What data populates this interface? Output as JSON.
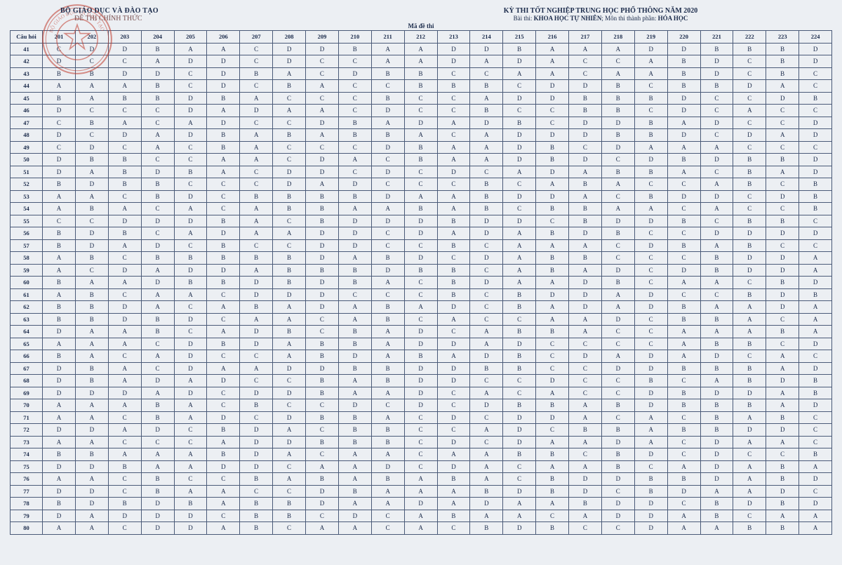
{
  "header": {
    "ministry": "BỘ GIÁO DỤC VÀ ĐÀO TẠO",
    "official": "ĐỀ THI CHÍNH THỨC",
    "exam_title": "KỲ THI TỐT NGHIỆP TRUNG HỌC PHỔ THÔNG NĂM 2020",
    "exam_sub_prefix": "Bài thi:",
    "exam_sub_bold1": "KHOA HỌC TỰ NHIÊN",
    "exam_sub_mid": "; Môn thi thành phần:",
    "exam_sub_bold2": "HÓA HỌC",
    "ma_de_thi": "Mã đề thi",
    "cau_hoi": "Câu hỏi"
  },
  "codes": [
    "201",
    "202",
    "203",
    "204",
    "205",
    "206",
    "207",
    "208",
    "209",
    "210",
    "211",
    "212",
    "213",
    "214",
    "215",
    "216",
    "217",
    "218",
    "219",
    "220",
    "221",
    "222",
    "223",
    "224"
  ],
  "question_start": 41,
  "question_end": 80,
  "answers": {
    "41": [
      "C",
      "D",
      "D",
      "B",
      "A",
      "A",
      "C",
      "D",
      "D",
      "B",
      "A",
      "A",
      "D",
      "D",
      "B",
      "A",
      "A",
      "A",
      "D",
      "D",
      "B",
      "B",
      "B",
      "D"
    ],
    "42": [
      "D",
      "C",
      "C",
      "A",
      "D",
      "D",
      "C",
      "D",
      "C",
      "C",
      "A",
      "A",
      "D",
      "A",
      "D",
      "A",
      "C",
      "C",
      "A",
      "B",
      "D",
      "C",
      "B",
      "D"
    ],
    "43": [
      "B",
      "B",
      "D",
      "D",
      "C",
      "D",
      "B",
      "A",
      "C",
      "D",
      "B",
      "B",
      "C",
      "C",
      "A",
      "A",
      "C",
      "A",
      "A",
      "B",
      "D",
      "C",
      "B",
      "C"
    ],
    "44": [
      "A",
      "A",
      "A",
      "B",
      "C",
      "D",
      "C",
      "B",
      "A",
      "C",
      "C",
      "B",
      "B",
      "B",
      "C",
      "D",
      "D",
      "B",
      "C",
      "B",
      "B",
      "D",
      "A",
      "C"
    ],
    "45": [
      "B",
      "A",
      "B",
      "B",
      "D",
      "B",
      "A",
      "C",
      "C",
      "C",
      "B",
      "C",
      "C",
      "A",
      "D",
      "D",
      "B",
      "B",
      "B",
      "D",
      "C",
      "C",
      "D",
      "B"
    ],
    "46": [
      "D",
      "C",
      "C",
      "C",
      "D",
      "A",
      "D",
      "A",
      "A",
      "C",
      "D",
      "C",
      "C",
      "B",
      "C",
      "C",
      "B",
      "B",
      "C",
      "D",
      "C",
      "A",
      "C",
      "C"
    ],
    "47": [
      "C",
      "B",
      "A",
      "C",
      "A",
      "D",
      "C",
      "C",
      "D",
      "B",
      "A",
      "D",
      "A",
      "D",
      "B",
      "C",
      "D",
      "D",
      "B",
      "A",
      "D",
      "C",
      "C",
      "D"
    ],
    "48": [
      "D",
      "C",
      "D",
      "A",
      "D",
      "B",
      "A",
      "B",
      "A",
      "B",
      "B",
      "A",
      "C",
      "A",
      "D",
      "D",
      "D",
      "B",
      "B",
      "D",
      "C",
      "D",
      "A",
      "D"
    ],
    "49": [
      "C",
      "D",
      "C",
      "A",
      "C",
      "B",
      "A",
      "C",
      "C",
      "C",
      "D",
      "B",
      "A",
      "A",
      "D",
      "B",
      "C",
      "D",
      "A",
      "A",
      "A",
      "C",
      "C",
      "C"
    ],
    "50": [
      "D",
      "B",
      "B",
      "C",
      "C",
      "A",
      "A",
      "C",
      "D",
      "A",
      "C",
      "B",
      "A",
      "A",
      "D",
      "B",
      "D",
      "C",
      "D",
      "B",
      "D",
      "B",
      "B",
      "D"
    ],
    "51": [
      "D",
      "A",
      "B",
      "D",
      "B",
      "A",
      "C",
      "D",
      "D",
      "C",
      "D",
      "C",
      "D",
      "C",
      "A",
      "D",
      "A",
      "B",
      "B",
      "A",
      "C",
      "B",
      "A",
      "D"
    ],
    "52": [
      "B",
      "D",
      "B",
      "B",
      "C",
      "C",
      "C",
      "D",
      "A",
      "D",
      "C",
      "C",
      "C",
      "B",
      "C",
      "A",
      "B",
      "A",
      "C",
      "C",
      "A",
      "B",
      "C",
      "B"
    ],
    "53": [
      "A",
      "A",
      "C",
      "B",
      "D",
      "C",
      "B",
      "B",
      "B",
      "B",
      "D",
      "A",
      "A",
      "B",
      "D",
      "D",
      "A",
      "C",
      "B",
      "D",
      "D",
      "C",
      "D",
      "B"
    ],
    "54": [
      "A",
      "B",
      "A",
      "C",
      "A",
      "C",
      "A",
      "B",
      "B",
      "A",
      "A",
      "B",
      "A",
      "B",
      "C",
      "B",
      "B",
      "A",
      "A",
      "C",
      "A",
      "C",
      "C",
      "B"
    ],
    "55": [
      "C",
      "C",
      "D",
      "D",
      "D",
      "B",
      "A",
      "C",
      "B",
      "D",
      "D",
      "D",
      "B",
      "D",
      "D",
      "C",
      "B",
      "D",
      "D",
      "B",
      "C",
      "B",
      "B",
      "C"
    ],
    "56": [
      "B",
      "D",
      "B",
      "C",
      "A",
      "D",
      "A",
      "A",
      "D",
      "D",
      "C",
      "D",
      "A",
      "D",
      "A",
      "B",
      "D",
      "B",
      "C",
      "C",
      "D",
      "D",
      "D",
      "D"
    ],
    "57": [
      "B",
      "D",
      "A",
      "D",
      "C",
      "B",
      "C",
      "C",
      "D",
      "D",
      "C",
      "C",
      "B",
      "C",
      "A",
      "A",
      "A",
      "C",
      "D",
      "B",
      "A",
      "B",
      "C",
      "C"
    ],
    "58": [
      "A",
      "B",
      "C",
      "B",
      "B",
      "B",
      "B",
      "B",
      "D",
      "A",
      "B",
      "D",
      "C",
      "D",
      "A",
      "B",
      "B",
      "C",
      "C",
      "C",
      "B",
      "D",
      "D",
      "A"
    ],
    "59": [
      "A",
      "C",
      "D",
      "A",
      "D",
      "D",
      "A",
      "B",
      "B",
      "B",
      "D",
      "B",
      "B",
      "C",
      "A",
      "B",
      "A",
      "D",
      "C",
      "D",
      "B",
      "D",
      "D",
      "A"
    ],
    "60": [
      "B",
      "A",
      "A",
      "D",
      "B",
      "B",
      "D",
      "B",
      "D",
      "B",
      "A",
      "C",
      "B",
      "D",
      "A",
      "A",
      "D",
      "B",
      "C",
      "A",
      "A",
      "C",
      "B",
      "D"
    ],
    "61": [
      "A",
      "B",
      "C",
      "A",
      "A",
      "C",
      "D",
      "D",
      "D",
      "C",
      "C",
      "C",
      "B",
      "C",
      "B",
      "D",
      "D",
      "A",
      "D",
      "C",
      "C",
      "B",
      "D",
      "B"
    ],
    "62": [
      "B",
      "B",
      "D",
      "A",
      "C",
      "A",
      "B",
      "A",
      "D",
      "A",
      "B",
      "A",
      "D",
      "C",
      "B",
      "A",
      "D",
      "A",
      "D",
      "B",
      "A",
      "A",
      "D",
      "A"
    ],
    "63": [
      "B",
      "B",
      "D",
      "B",
      "D",
      "C",
      "A",
      "A",
      "C",
      "A",
      "B",
      "C",
      "A",
      "C",
      "C",
      "A",
      "A",
      "D",
      "C",
      "B",
      "B",
      "A",
      "C",
      "A"
    ],
    "64": [
      "D",
      "A",
      "A",
      "B",
      "C",
      "A",
      "D",
      "B",
      "C",
      "B",
      "A",
      "D",
      "C",
      "A",
      "B",
      "B",
      "A",
      "C",
      "C",
      "A",
      "A",
      "A",
      "B",
      "A"
    ],
    "65": [
      "A",
      "A",
      "A",
      "C",
      "D",
      "B",
      "D",
      "A",
      "B",
      "B",
      "A",
      "D",
      "D",
      "A",
      "D",
      "C",
      "C",
      "C",
      "C",
      "A",
      "B",
      "B",
      "C",
      "D"
    ],
    "66": [
      "B",
      "A",
      "C",
      "A",
      "D",
      "C",
      "C",
      "A",
      "B",
      "D",
      "A",
      "B",
      "A",
      "D",
      "B",
      "C",
      "D",
      "A",
      "D",
      "A",
      "D",
      "C",
      "A",
      "C"
    ],
    "67": [
      "D",
      "B",
      "A",
      "C",
      "D",
      "A",
      "A",
      "D",
      "D",
      "B",
      "B",
      "D",
      "D",
      "B",
      "B",
      "C",
      "C",
      "D",
      "D",
      "B",
      "B",
      "B",
      "A",
      "D"
    ],
    "68": [
      "D",
      "B",
      "A",
      "D",
      "A",
      "D",
      "C",
      "C",
      "B",
      "A",
      "B",
      "D",
      "D",
      "C",
      "C",
      "D",
      "C",
      "C",
      "B",
      "C",
      "A",
      "B",
      "D",
      "B"
    ],
    "69": [
      "D",
      "D",
      "D",
      "A",
      "D",
      "C",
      "D",
      "D",
      "B",
      "A",
      "A",
      "D",
      "C",
      "A",
      "C",
      "A",
      "C",
      "C",
      "D",
      "B",
      "D",
      "D",
      "A",
      "B"
    ],
    "70": [
      "A",
      "A",
      "A",
      "B",
      "A",
      "C",
      "B",
      "C",
      "C",
      "D",
      "C",
      "D",
      "C",
      "D",
      "B",
      "B",
      "A",
      "B",
      "D",
      "B",
      "B",
      "B",
      "A",
      "D"
    ],
    "71": [
      "A",
      "A",
      "C",
      "B",
      "A",
      "D",
      "C",
      "D",
      "B",
      "B",
      "A",
      "C",
      "D",
      "C",
      "D",
      "D",
      "A",
      "C",
      "A",
      "C",
      "B",
      "A",
      "B",
      "C"
    ],
    "72": [
      "D",
      "D",
      "A",
      "D",
      "C",
      "B",
      "D",
      "A",
      "C",
      "B",
      "B",
      "C",
      "C",
      "A",
      "D",
      "C",
      "B",
      "B",
      "A",
      "B",
      "B",
      "D",
      "D",
      "C"
    ],
    "73": [
      "A",
      "A",
      "C",
      "C",
      "C",
      "A",
      "D",
      "D",
      "B",
      "B",
      "B",
      "C",
      "D",
      "C",
      "D",
      "A",
      "A",
      "D",
      "A",
      "C",
      "D",
      "A",
      "A",
      "C"
    ],
    "74": [
      "B",
      "B",
      "A",
      "A",
      "A",
      "B",
      "D",
      "A",
      "C",
      "A",
      "A",
      "C",
      "A",
      "A",
      "B",
      "B",
      "C",
      "B",
      "D",
      "C",
      "D",
      "C",
      "C",
      "B"
    ],
    "75": [
      "D",
      "D",
      "B",
      "A",
      "A",
      "D",
      "D",
      "C",
      "A",
      "A",
      "D",
      "C",
      "D",
      "A",
      "C",
      "A",
      "A",
      "B",
      "C",
      "A",
      "D",
      "A",
      "B",
      "A"
    ],
    "76": [
      "A",
      "A",
      "C",
      "B",
      "C",
      "C",
      "B",
      "A",
      "B",
      "A",
      "B",
      "A",
      "B",
      "A",
      "C",
      "B",
      "D",
      "D",
      "B",
      "B",
      "D",
      "A",
      "B",
      "D"
    ],
    "77": [
      "D",
      "D",
      "C",
      "B",
      "A",
      "A",
      "C",
      "C",
      "D",
      "B",
      "A",
      "A",
      "A",
      "B",
      "D",
      "B",
      "D",
      "C",
      "B",
      "D",
      "A",
      "A",
      "D",
      "C"
    ],
    "78": [
      "B",
      "D",
      "B",
      "D",
      "B",
      "A",
      "B",
      "B",
      "D",
      "A",
      "A",
      "D",
      "A",
      "D",
      "A",
      "A",
      "B",
      "D",
      "D",
      "C",
      "B",
      "D",
      "B",
      "D"
    ],
    "79": [
      "D",
      "A",
      "D",
      "D",
      "D",
      "C",
      "B",
      "B",
      "C",
      "D",
      "C",
      "A",
      "B",
      "A",
      "A",
      "C",
      "A",
      "D",
      "D",
      "A",
      "B",
      "C",
      "A",
      "A"
    ],
    "80": [
      "A",
      "A",
      "C",
      "D",
      "D",
      "A",
      "B",
      "C",
      "A",
      "A",
      "C",
      "A",
      "C",
      "B",
      "D",
      "B",
      "C",
      "C",
      "D",
      "A",
      "A",
      "B",
      "B",
      "A"
    ]
  },
  "colors": {
    "border": "#4a5a78",
    "text": "#1a2a4a",
    "stamp": "#c0392b",
    "background": "#eceff3"
  },
  "stamp": {
    "outer_text": "BỘ GIÁO DỤC VÀ ĐÀO TẠO"
  }
}
